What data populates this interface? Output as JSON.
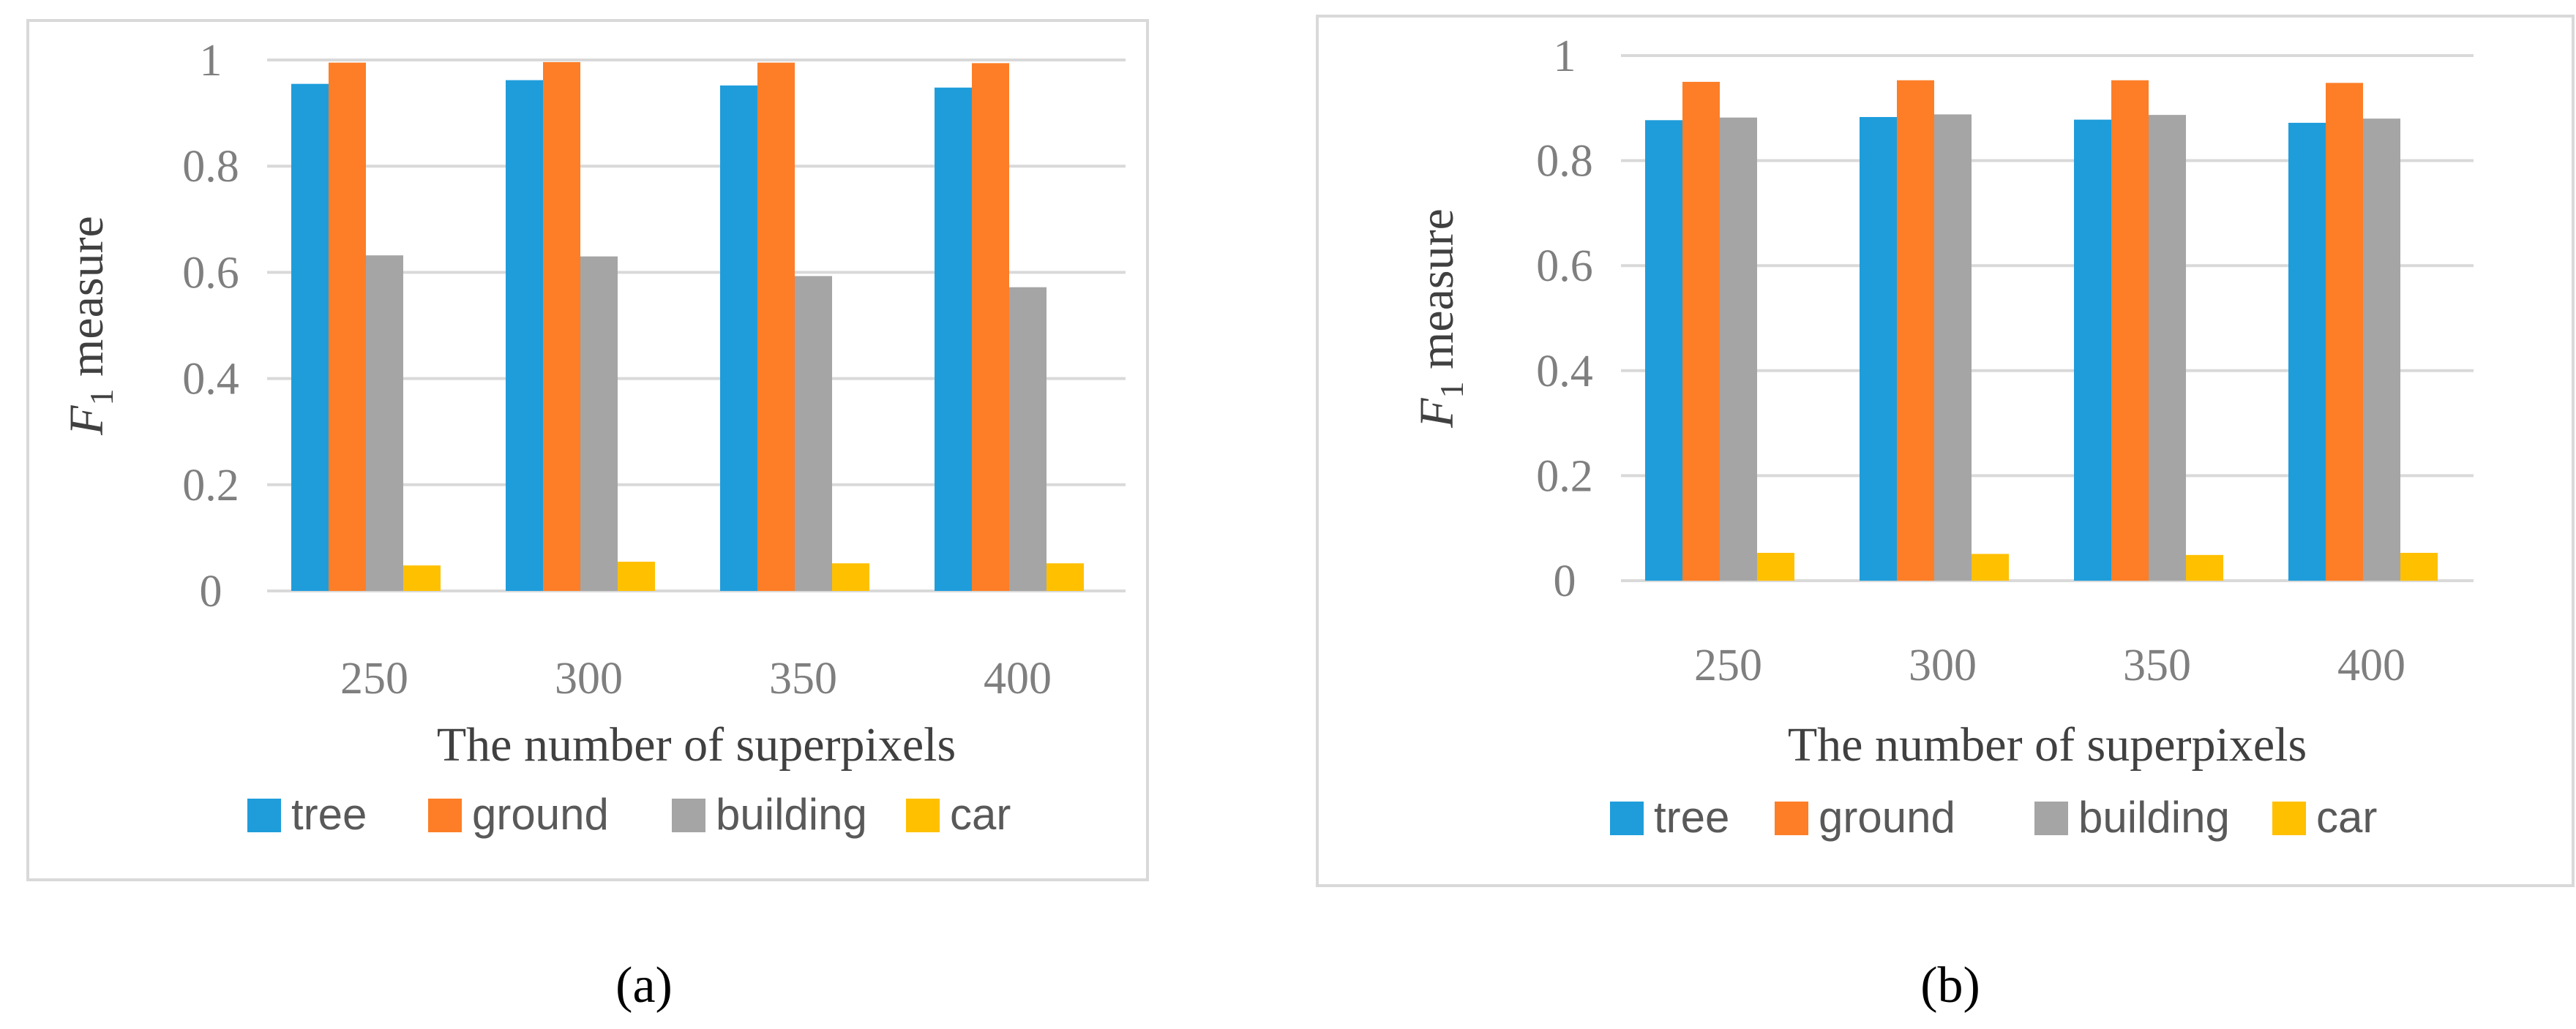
{
  "chart_data": [
    {
      "type": "bar",
      "caption": "(a)",
      "categories": [
        "250",
        "300",
        "350",
        "400"
      ],
      "series": [
        {
          "name": "tree",
          "color": "#1f9ddb",
          "values": [
            0.955,
            0.962,
            0.952,
            0.948
          ]
        },
        {
          "name": "ground",
          "color": "#fd7e27",
          "values": [
            0.995,
            0.996,
            0.995,
            0.994
          ]
        },
        {
          "name": "building",
          "color": "#a5a5a5",
          "values": [
            0.632,
            0.63,
            0.593,
            0.572
          ]
        },
        {
          "name": "car",
          "color": "#ffc000",
          "values": [
            0.048,
            0.055,
            0.052,
            0.052
          ]
        }
      ],
      "ylim": [
        0,
        1
      ],
      "yticks": [
        "0",
        "0.2",
        "0.4",
        "0.6",
        "0.8",
        "1"
      ],
      "xlabel": "The number of superpixels",
      "ylabel": {
        "base": "F",
        "subscript": "1",
        "rest": " measure"
      },
      "grid": true,
      "legend": "bottom"
    },
    {
      "type": "bar",
      "caption": "(b)",
      "categories": [
        "250",
        "300",
        "350",
        "400"
      ],
      "series": [
        {
          "name": "tree",
          "color": "#1f9ddb",
          "values": [
            0.877,
            0.883,
            0.878,
            0.872
          ]
        },
        {
          "name": "ground",
          "color": "#fd7e27",
          "values": [
            0.95,
            0.953,
            0.953,
            0.948
          ]
        },
        {
          "name": "building",
          "color": "#a5a5a5",
          "values": [
            0.882,
            0.888,
            0.887,
            0.88
          ]
        },
        {
          "name": "car",
          "color": "#ffc000",
          "values": [
            0.053,
            0.051,
            0.049,
            0.053
          ]
        }
      ],
      "ylim": [
        0,
        1
      ],
      "yticks": [
        "0",
        "0.2",
        "0.4",
        "0.6",
        "0.8",
        "1"
      ],
      "xlabel": "The number of superpixels",
      "ylabel": {
        "base": "F",
        "subscript": "1",
        "rest": " measure"
      },
      "grid": true,
      "legend": "bottom"
    }
  ]
}
